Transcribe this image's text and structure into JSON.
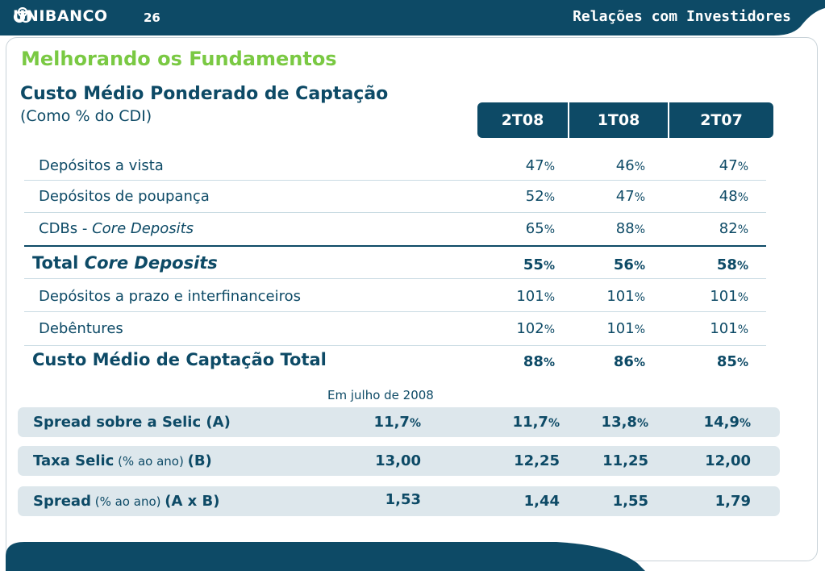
{
  "header": {
    "brand": "UNIBANCO",
    "page_number": "26",
    "section": "Relações com Investidores",
    "colors": {
      "bar": "#0d4a66",
      "title_green": "#7ac943",
      "band": "#dde7ec"
    }
  },
  "main": {
    "title": "Melhorando os Fundamentos",
    "subtitle": "Custo Médio Ponderado de Captação",
    "subnote": "(Como % do CDI)",
    "columns": [
      "2T08",
      "1T08",
      "2T07"
    ],
    "rows": [
      {
        "label": "Depósitos a vista",
        "values": [
          "47",
          "46",
          "47"
        ]
      },
      {
        "label": "Depósitos de poupança",
        "values": [
          "52",
          "47",
          "48"
        ]
      },
      {
        "label_prefix": "CDBs - ",
        "label_italic": "Core Deposits",
        "values": [
          "65",
          "88",
          "82"
        ]
      },
      {
        "label_prefix": "Total ",
        "label_italic": "Core Deposits",
        "values": [
          "55",
          "56",
          "58"
        ]
      },
      {
        "label": "Depósitos a prazo e interfinanceiros",
        "values": [
          "101",
          "101",
          "101"
        ]
      },
      {
        "label": "Debêntures",
        "values": [
          "102",
          "101",
          "101"
        ]
      },
      {
        "label": "Custo Médio de Captação Total",
        "values": [
          "88",
          "86",
          "85"
        ]
      }
    ],
    "pct": "%",
    "july_note": "Em julho de 2008",
    "bands": [
      {
        "label": "Spread sobre a Selic (A)",
        "july": "11,7",
        "values": [
          "11,7",
          "13,8",
          "14,9"
        ]
      },
      {
        "label_bold": "Taxa Selic",
        "label_normal": " (% ao ano) ",
        "label_bold2": "(B)",
        "july": "13,00",
        "values": [
          "12,25",
          "11,25",
          "12,00"
        ]
      },
      {
        "label_bold": "Spread",
        "label_normal": " (% ao ano) ",
        "label_bold2": "(A x B)",
        "july": "1,53",
        "values": [
          "1,44",
          "1,55",
          "1,79"
        ]
      }
    ]
  }
}
